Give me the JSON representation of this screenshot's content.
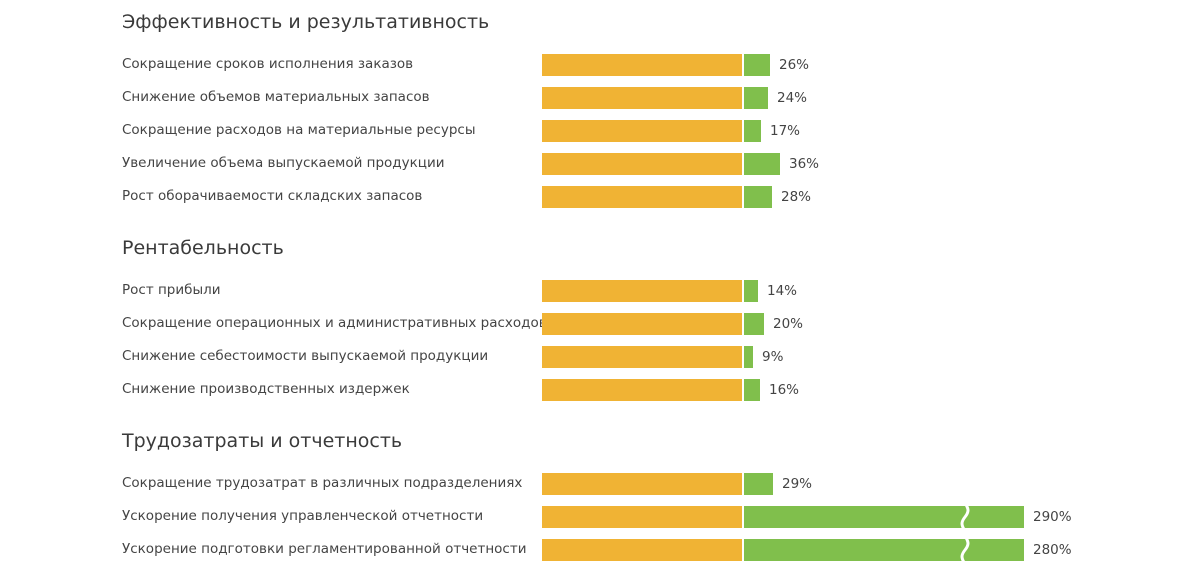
{
  "colors": {
    "base": "#f0b334",
    "value": "#80bf4c",
    "text": "#444444"
  },
  "chart_data": {
    "type": "bar",
    "orientation": "horizontal",
    "unit": "%",
    "axis_break_above": 100,
    "sections": [
      {
        "title": "Эффективность и результативность",
        "categories": [
          "Сокращение сроков исполнения заказов",
          "Снижение объемов материальных запасов",
          "Сокращение расходов на материальные ресурсы",
          "Увеличение объема выпускаемой продукции",
          "Рост оборачиваемости складских запасов"
        ],
        "values": [
          26,
          24,
          17,
          36,
          28
        ],
        "labels": [
          "26%",
          "24%",
          "17%",
          "36%",
          "28%"
        ]
      },
      {
        "title": "Рентабельность",
        "categories": [
          "Рост прибыли",
          "Сокращение операционных и административных расходов",
          "Снижение себестоимости выпускаемой продукции",
          "Снижение производственных издержек"
        ],
        "values": [
          14,
          20,
          9,
          16
        ],
        "labels": [
          "14%",
          "20%",
          "9%",
          "16%"
        ]
      },
      {
        "title": "Трудозатраты и отчетность",
        "categories": [
          "Сокращение трудозатрат в различных подразделениях",
          "Ускорение получения управленческой отчетности",
          "Ускорение подготовки регламентированной отчетности"
        ],
        "values": [
          29,
          290,
          280
        ],
        "labels": [
          "29%",
          "290%",
          "280%"
        ]
      }
    ]
  }
}
